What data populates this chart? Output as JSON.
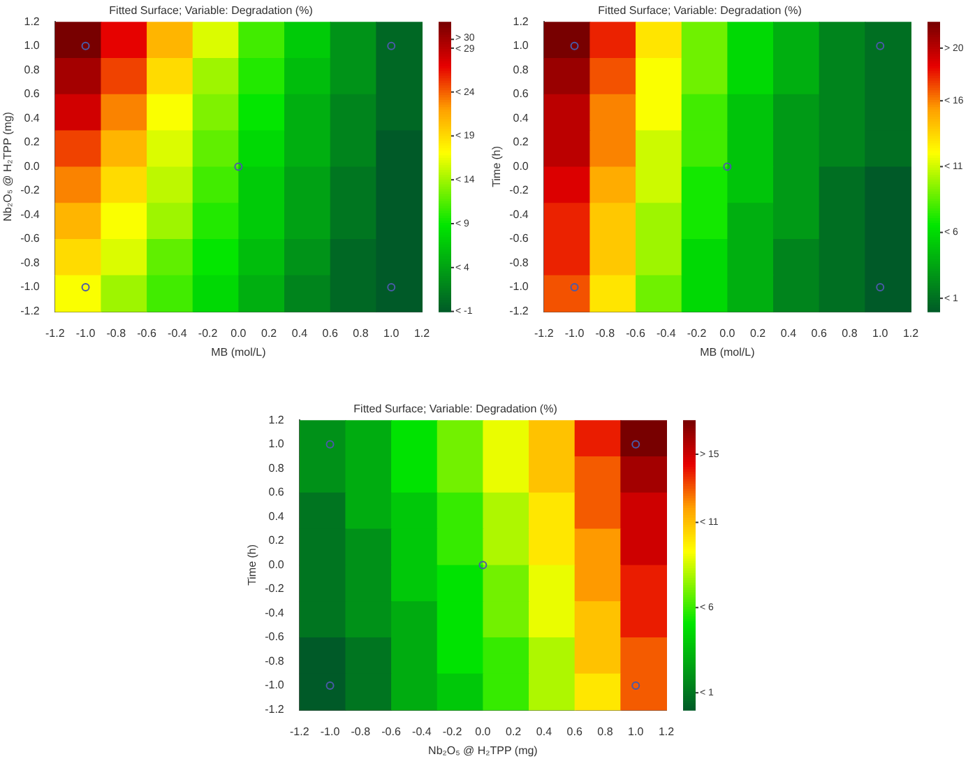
{
  "chart_data": [
    {
      "type": "heatmap",
      "title": "Fitted Surface; Variable: Degradation (%)",
      "xlabel": "MB (mol/L)",
      "ylabel": "Nb₂O₅ @ H₂TPP (mg)",
      "xlim": [
        -1.2,
        1.2
      ],
      "ylim": [
        -1.2,
        1.2
      ],
      "xticks": [
        -1.2,
        {
          "value": -1,
          "label": "-1.0"
        },
        -0.8,
        -0.6,
        -0.4,
        -0.2,
        {
          "value": 0,
          "label": "0.0"
        },
        0.2,
        0.4,
        0.6,
        0.8,
        {
          "value": 1,
          "label": "1.0"
        },
        1.2
      ],
      "yticks": [
        -1.2,
        {
          "value": -1,
          "label": "-1.0"
        },
        -0.8,
        -0.6,
        -0.4,
        -0.2,
        {
          "value": 0,
          "label": "0.0"
        },
        0.2,
        0.4,
        0.6,
        0.8,
        {
          "value": 1,
          "label": "1.0"
        },
        1.2
      ],
      "cells": [
        [
          32,
          27,
          21,
          16,
          11,
          7,
          3,
          0
        ],
        [
          30,
          25,
          19,
          14,
          10,
          6,
          3,
          0
        ],
        [
          28,
          23,
          17,
          13,
          9,
          5,
          2,
          0
        ],
        [
          25,
          21,
          16,
          12,
          8,
          5,
          2,
          -1
        ],
        [
          23,
          19,
          15,
          11,
          7,
          4,
          1,
          -1
        ],
        [
          21,
          17,
          14,
          10,
          7,
          4,
          1,
          -1
        ],
        [
          19,
          16,
          12,
          9,
          6,
          3,
          0,
          -1
        ],
        [
          17,
          14,
          11,
          8,
          5,
          2,
          0,
          -1
        ]
      ],
      "clim": [
        -1,
        32
      ],
      "cticks": [
        {
          "value": 30,
          "label": "> 30"
        },
        {
          "value": 29,
          "label": "< 29"
        },
        {
          "value": 24,
          "label": "< 24"
        },
        {
          "value": 19,
          "label": "< 19"
        },
        {
          "value": 14,
          "label": "< 14"
        },
        {
          "value": 9,
          "label": "< 9"
        },
        {
          "value": 4,
          "label": "< 4"
        },
        {
          "value": -1,
          "label": "< -1"
        }
      ],
      "series": [
        {
          "type": "scatter",
          "color": "#4a5aa8",
          "x": [
            -1,
            1,
            0,
            -1,
            1
          ],
          "values": [
            1,
            1,
            0,
            -1,
            -1
          ]
        }
      ]
    },
    {
      "type": "heatmap",
      "title": "Fitted Surface; Variable: Degradation (%)",
      "xlabel": "MB (mol/L)",
      "ylabel": "Time (h)",
      "xlim": [
        -1.2,
        1.2
      ],
      "ylim": [
        -1.2,
        1.2
      ],
      "xticks": [
        -1.2,
        {
          "value": -1,
          "label": "-1.0"
        },
        -0.8,
        -0.6,
        -0.4,
        -0.2,
        {
          "value": 0,
          "label": "0.0"
        },
        0.2,
        0.4,
        0.6,
        0.8,
        {
          "value": 1,
          "label": "1.0"
        },
        1.2
      ],
      "yticks": [
        -1.2,
        {
          "value": -1,
          "label": "-1.0"
        },
        -0.8,
        -0.6,
        -0.4,
        -0.2,
        {
          "value": 0,
          "label": "0.0"
        },
        0.2,
        0.4,
        0.6,
        0.8,
        {
          "value": 1,
          "label": "1.0"
        },
        1.2
      ],
      "cells": [
        [
          22,
          18,
          13,
          9,
          6,
          4,
          2,
          1
        ],
        [
          21,
          17,
          12,
          9,
          6,
          4,
          2,
          1
        ],
        [
          20,
          16,
          12,
          8,
          5,
          3,
          2,
          1
        ],
        [
          20,
          16,
          11,
          8,
          5,
          3,
          2,
          1
        ],
        [
          19,
          15,
          11,
          7,
          5,
          3,
          1,
          0
        ],
        [
          18,
          14,
          10,
          7,
          4,
          3,
          1,
          0
        ],
        [
          18,
          14,
          10,
          6,
          4,
          2,
          1,
          0
        ],
        [
          17,
          13,
          9,
          6,
          4,
          2,
          1,
          0
        ]
      ],
      "clim": [
        0,
        22
      ],
      "cticks": [
        {
          "value": 20,
          "label": "> 20"
        },
        {
          "value": 16,
          "label": "< 16"
        },
        {
          "value": 11,
          "label": "< 11"
        },
        {
          "value": 6,
          "label": "< 6"
        },
        {
          "value": 1,
          "label": "< 1"
        }
      ],
      "series": [
        {
          "type": "scatter",
          "color": "#4a5aa8",
          "x": [
            -1,
            1,
            0,
            -1,
            1
          ],
          "values": [
            1,
            1,
            0,
            -1,
            -1
          ]
        }
      ]
    },
    {
      "type": "heatmap",
      "title": "Fitted Surface; Variable: Degradation (%)",
      "xlabel": "Nb₂O₅ @ H₂TPP (mg)",
      "ylabel": "Time (h)",
      "xlim": [
        -1.2,
        1.2
      ],
      "ylim": [
        -1.2,
        1.2
      ],
      "xticks": [
        -1.2,
        {
          "value": -1,
          "label": "-1.0"
        },
        -0.8,
        -0.6,
        -0.4,
        -0.2,
        {
          "value": 0,
          "label": "0.0"
        },
        0.2,
        0.4,
        0.6,
        0.8,
        {
          "value": 1,
          "label": "1.0"
        },
        1.2
      ],
      "yticks": [
        -1.2,
        {
          "value": -1,
          "label": "-1.0"
        },
        -0.8,
        -0.6,
        -0.4,
        -0.2,
        {
          "value": 0,
          "label": "0.0"
        },
        0.2,
        0.4,
        0.6,
        0.8,
        {
          "value": 1,
          "label": "1.0"
        },
        1.2
      ],
      "cells": [
        [
          2,
          3,
          5,
          7,
          9,
          11,
          14,
          17
        ],
        [
          2,
          3,
          5,
          7,
          9,
          11,
          13,
          16
        ],
        [
          1,
          3,
          4,
          6,
          8,
          10,
          13,
          15
        ],
        [
          1,
          2,
          4,
          6,
          8,
          10,
          12,
          15
        ],
        [
          1,
          2,
          4,
          5,
          7,
          9,
          12,
          14
        ],
        [
          1,
          2,
          3,
          5,
          7,
          9,
          11,
          14
        ],
        [
          0,
          1,
          3,
          5,
          6,
          8,
          11,
          13
        ],
        [
          0,
          1,
          3,
          4,
          6,
          8,
          10,
          13
        ]
      ],
      "clim": [
        0,
        17
      ],
      "cticks": [
        {
          "value": 15,
          "label": "> 15"
        },
        {
          "value": 11,
          "label": "< 11"
        },
        {
          "value": 6,
          "label": "< 6"
        },
        {
          "value": 1,
          "label": "< 1"
        }
      ],
      "series": [
        {
          "type": "scatter",
          "color": "#4a5aa8",
          "x": [
            -1,
            1,
            0,
            -1,
            1
          ],
          "values": [
            1,
            1,
            0,
            -1,
            -1
          ]
        }
      ]
    }
  ]
}
